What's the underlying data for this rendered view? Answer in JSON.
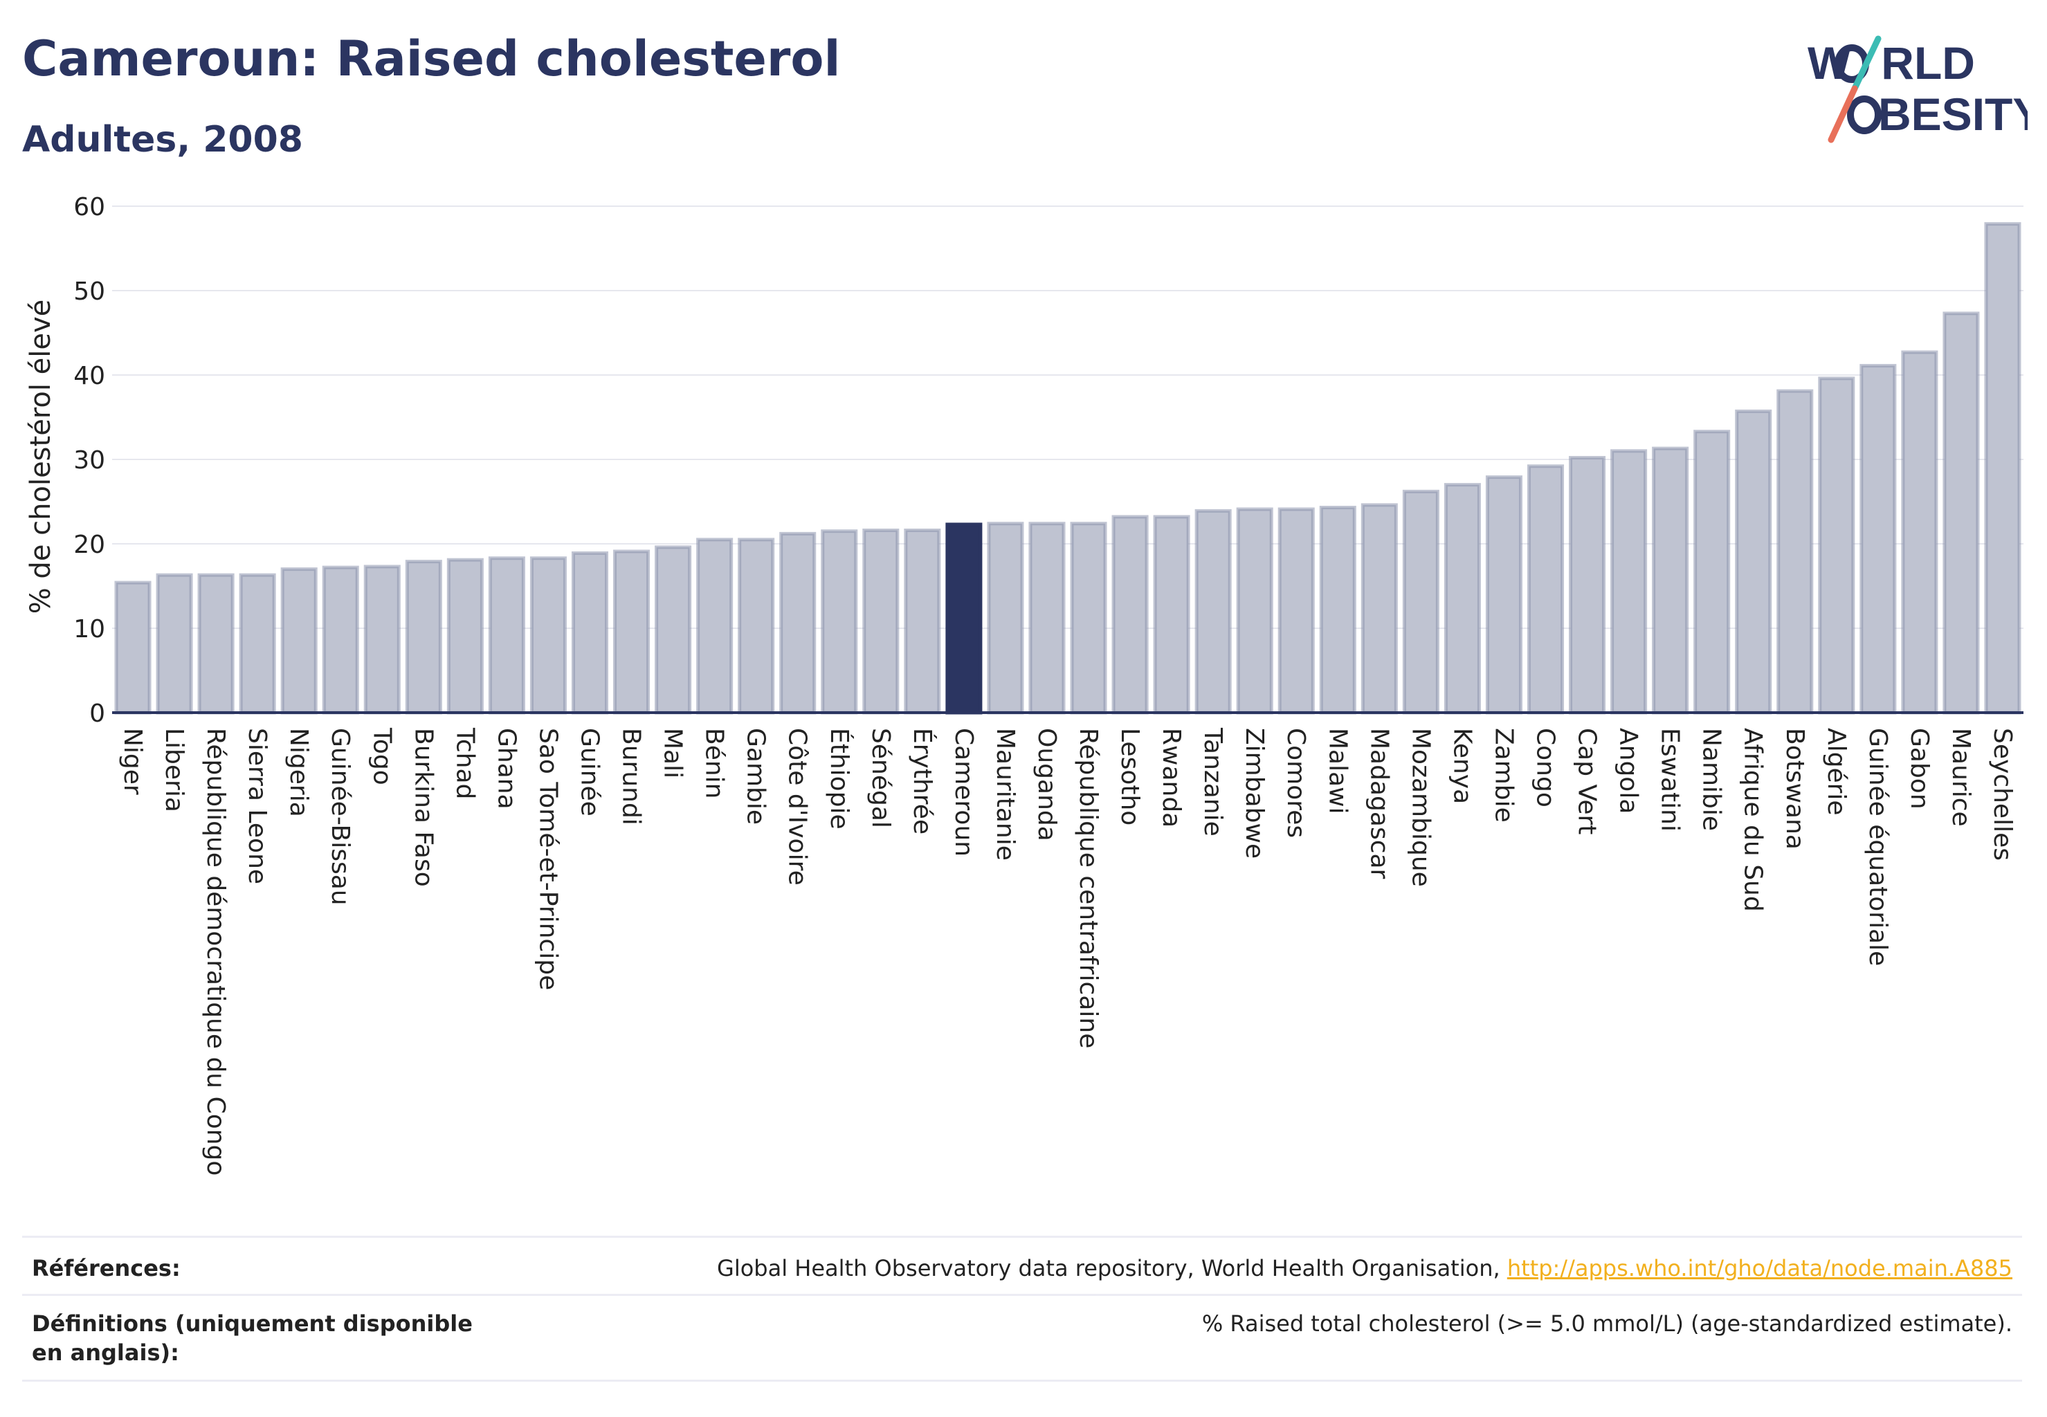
{
  "header": {
    "title": "Cameroun: Raised cholesterol",
    "subtitle": "Adultes, 2008"
  },
  "logo": {
    "text": "WORLD OBESITY",
    "line1": "W",
    "line1b": "RLD",
    "line2": "BESITY"
  },
  "colors": {
    "bar": "#bfc3d1",
    "bar_stroke": "#8c93ad",
    "highlight": "#2b3561",
    "text": "#2b3561",
    "link": "#f2b01e"
  },
  "chart_data": {
    "type": "bar",
    "ylabel": "% de cholestérol élevé",
    "xlabel": "",
    "ylim": [
      0,
      60
    ],
    "yticks": [
      0,
      10,
      20,
      30,
      40,
      50,
      60
    ],
    "grid": true,
    "highlight": "Cameroun",
    "categories": [
      "Niger",
      "Liberia",
      "République démocratique du Congo",
      "Sierra Leone",
      "Nigeria",
      "Guinée-Bissau",
      "Togo",
      "Burkina Faso",
      "Tchad",
      "Ghana",
      "Sao Tomé-et-Principe",
      "Guinée",
      "Burundi",
      "Mali",
      "Bénin",
      "Gambie",
      "Côte d'Ivoire",
      "Éthiopie",
      "Sénégal",
      "Érythrée",
      "Cameroun",
      "Mauritanie",
      "Ouganda",
      "République centrafricaine",
      "Lesotho",
      "Rwanda",
      "Tanzanie",
      "Zimbabwe",
      "Comores",
      "Malawi",
      "Madagascar",
      "Mozambique",
      "Kenya",
      "Zambie",
      "Congo",
      "Cap Vert",
      "Angola",
      "Eswatini",
      "Namibie",
      "Afrique du Sud",
      "Botswana",
      "Algérie",
      "Guinée équatoriale",
      "Gabon",
      "Maurice",
      "Seychelles"
    ],
    "values": [
      15.4,
      16.3,
      16.3,
      16.3,
      17.0,
      17.2,
      17.3,
      17.9,
      18.1,
      18.3,
      18.3,
      18.9,
      19.1,
      19.6,
      20.5,
      20.5,
      21.2,
      21.5,
      21.6,
      21.6,
      22.3,
      22.4,
      22.4,
      22.4,
      23.2,
      23.2,
      23.9,
      24.1,
      24.1,
      24.3,
      24.6,
      26.2,
      27.0,
      27.9,
      29.2,
      30.2,
      31.0,
      31.3,
      33.3,
      35.7,
      38.1,
      39.6,
      41.1,
      42.7,
      47.3,
      57.9
    ]
  },
  "footer": {
    "references_label": "Références:",
    "references_text": "Global Health Observatory data repository, World Health Organisation, ",
    "references_link": "http://apps.who.int/gho/data/node.main.A885",
    "definitions_label": "Définitions (uniquement disponible en anglais):",
    "definitions_text": "% Raised total cholesterol (>= 5.0 mmol/L) (age-standardized estimate)."
  }
}
